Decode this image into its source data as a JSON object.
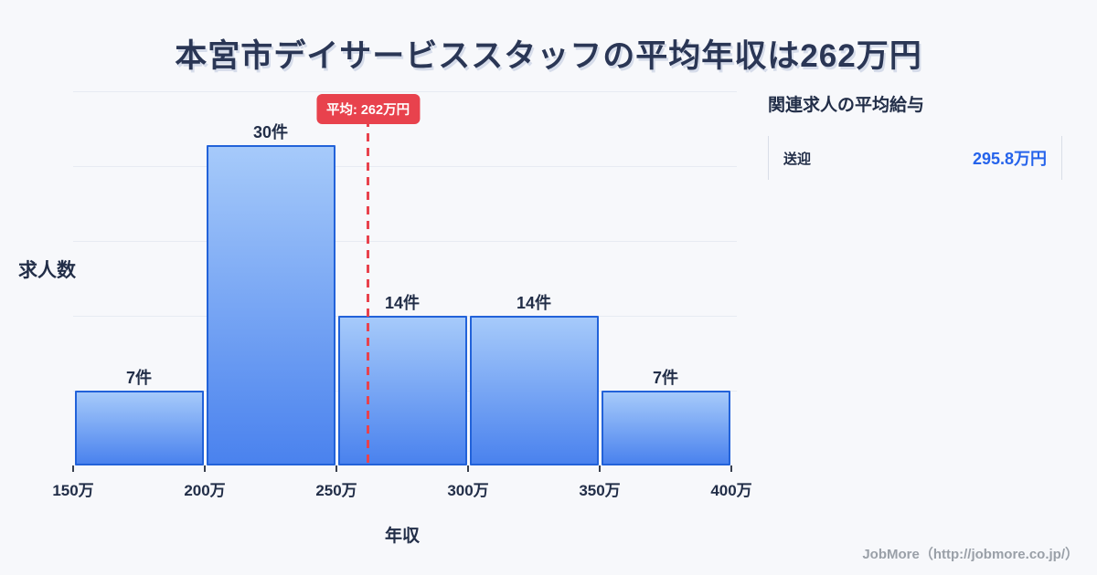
{
  "title": "本宮市デイサービススタッフの平均年収は262万円",
  "chart_data": {
    "type": "bar",
    "title": "本宮市デイサービススタッフの平均年収は262万円",
    "xlabel": "年収",
    "ylabel": "求人数",
    "xlim": [
      150,
      400
    ],
    "ylim": [
      0,
      35
    ],
    "grid_step": 7,
    "grid_on": true,
    "bins": [
      {
        "from": 150,
        "to": 200,
        "count": 7,
        "label": "7件"
      },
      {
        "from": 200,
        "to": 250,
        "count": 30,
        "label": "30件"
      },
      {
        "from": 250,
        "to": 300,
        "count": 14,
        "label": "14件"
      },
      {
        "from": 300,
        "to": 350,
        "count": 14,
        "label": "14件"
      },
      {
        "from": 350,
        "to": 400,
        "count": 7,
        "label": "7件"
      }
    ],
    "x_ticks": [
      {
        "value": 150,
        "label": "150万"
      },
      {
        "value": 200,
        "label": "200万"
      },
      {
        "value": 250,
        "label": "250万"
      },
      {
        "value": 300,
        "label": "300万"
      },
      {
        "value": 350,
        "label": "350万"
      },
      {
        "value": 400,
        "label": "400万"
      }
    ],
    "mean": {
      "value": 262,
      "label": "平均: 262万円"
    }
  },
  "side_panel": {
    "heading": "関連求人の平均給与",
    "rows": [
      {
        "label": "送迎",
        "value": "295.8万円"
      }
    ]
  },
  "footer": {
    "credit": "JobMore（http://jobmore.co.jp/）"
  },
  "colors": {
    "background": "#f7f8fb",
    "title_text": "#2a3655",
    "text_dark": "#222e48",
    "bar_border": "#2262d9",
    "bar_gradient_top": "#a6cafa",
    "bar_gradient_bottom": "#4a82ee",
    "mean_red": "#e8424d",
    "accent_blue": "#2563eb",
    "grid": "#e7ebf2",
    "panel_border": "#d9dee7",
    "footer_gray": "#9aa0a8"
  }
}
